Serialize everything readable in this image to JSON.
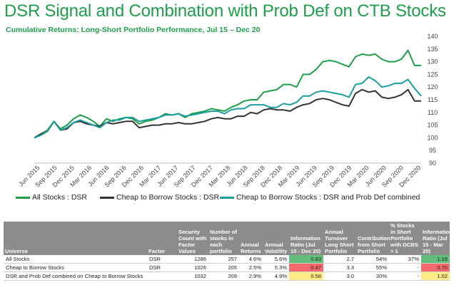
{
  "title": "DSR Signal and Combination with Prob Def on CTB Stocks",
  "subtitle": "Cumulative Returns: Long-Short Portfolio Performance, Jul 15 – Dec 20",
  "colors": {
    "title": "#1e9e4a",
    "all_stocks": "#1e9e4a",
    "ctb_dsr": "#333333",
    "ctb_combined": "#1a9e9e",
    "header_bg": "#8c8c8c",
    "good": "#63be7b",
    "bad": "#f8696b",
    "mid": "#ffeb84"
  },
  "chart_data": {
    "type": "line",
    "title": "",
    "xlabel": "",
    "ylabel": "",
    "ylim": [
      90,
      140
    ],
    "yticks": [
      90,
      95,
      100,
      105,
      110,
      115,
      120,
      125,
      130,
      135,
      140
    ],
    "grid": false,
    "legend_position": "bottom",
    "x_tick_labels": [
      "Jun 2015",
      "Sep 2015",
      "Dec 2015",
      "Mar 2016",
      "Jun 2016",
      "Sep 2016",
      "Dec 2016",
      "Mar 2017",
      "Jun 2017",
      "Sep 2017",
      "Dec 2017",
      "Mar 2018",
      "Jun 2018",
      "Sep 2018",
      "Dec 2018",
      "Mar 2019",
      "Jun 2019",
      "Sep 2019",
      "Dec 2019",
      "Mar 2020",
      "Jun 2020",
      "Sep 2020",
      "Dec 2020"
    ],
    "series": [
      {
        "name": "All Stocks : DSR",
        "values": [
          100,
          101.5,
          103,
          106.5,
          103.5,
          105,
          107.5,
          109,
          108,
          106.5,
          104.5,
          107.5,
          106.5,
          107.5,
          108,
          107.5,
          105.5,
          106.5,
          107,
          108,
          109.5,
          109,
          109.5,
          108,
          109.5,
          110,
          110.5,
          111.5,
          111,
          110.5,
          112,
          113,
          114.5,
          115,
          115,
          118,
          118.5,
          119,
          121,
          121,
          120,
          125,
          125,
          127,
          130,
          130.5,
          130,
          129,
          128,
          132,
          133,
          132.5,
          133,
          131,
          130,
          130,
          131,
          134.5,
          128.5,
          128.5
        ]
      },
      {
        "name": "Cheap to Borrow Stocks : DSR",
        "values": [
          100,
          101.5,
          102.5,
          106.5,
          103,
          103.5,
          106,
          106.5,
          105.5,
          105,
          104.5,
          106,
          105.5,
          106,
          106.5,
          106.5,
          104,
          104.5,
          105,
          105,
          105.5,
          105.5,
          106,
          105.5,
          105.5,
          106,
          106.5,
          107.5,
          108,
          107.5,
          107.5,
          108.5,
          108.5,
          110,
          109.5,
          111,
          111.5,
          111,
          111,
          110.5,
          112,
          113,
          113.5,
          115,
          115.5,
          115,
          114,
          113,
          112.5,
          117.5,
          119,
          118,
          118.5,
          116,
          115.5,
          116,
          117,
          119,
          114.5,
          114.5
        ]
      },
      {
        "name": "Cheap to Borrow Stocks : DSR and Prob Def combined",
        "values": [
          100,
          101,
          102.5,
          106.5,
          103,
          104,
          106,
          107,
          106,
          105,
          104,
          106,
          107,
          107,
          108,
          108,
          106.5,
          107,
          107.5,
          108,
          109,
          109,
          109.5,
          108.5,
          109,
          109.5,
          110,
          110.5,
          110.5,
          109.5,
          111,
          111.5,
          111.5,
          113,
          113,
          113,
          112,
          112,
          113.5,
          113,
          114,
          116.5,
          116.5,
          118,
          118.5,
          118,
          117.5,
          117,
          116,
          121,
          121.5,
          124,
          122.5,
          120,
          120.5,
          121.5,
          121.5,
          123,
          119.5,
          116.5
        ]
      }
    ]
  },
  "table": {
    "headers": [
      "Universe",
      "Factor",
      "Security Count with Factor Values",
      "Number of stocks in each portfolio",
      "Annual Returns",
      "Annual Volatility",
      "Information Ratio (Jul 15 - Dec 20)",
      "Annual Turnover Long Short Portfolio",
      "Contribution from Short Portfolio",
      "% Stocks in Short Portfolio with DCBS > 1",
      "Information Ratio (Jul 15 - Mar 20)"
    ],
    "rows": [
      {
        "universe": "All Stocks",
        "factor": "DSR",
        "count": "1286",
        "n": "257",
        "ret": "4.6%",
        "vol": "5.6%",
        "ir": "0.83",
        "turnover": "2.7",
        "contrib": "54%",
        "pct": "37%",
        "ir2": "1.16",
        "ir_color": "good",
        "ir2_color": "good"
      },
      {
        "universe": "Cheap to Borrow Stocks",
        "factor": "DSR",
        "count": "1026",
        "n": "205",
        "ret": "2.5%",
        "vol": "5.3%",
        "ir": "0.47",
        "turnover": "3.3",
        "contrib": "55%",
        "pct": "-",
        "ir2": "0.70",
        "ir_color": "bad",
        "ir2_color": "bad"
      },
      {
        "universe": "DSR and Prob Def combined on Cheap to Borrow Stocks",
        "factor": "",
        "count": "1032",
        "n": "209",
        "ret": "2.9%",
        "vol": "4.9%",
        "ir": "0.58",
        "turnover": "3.0",
        "contrib": "30%",
        "pct": "-",
        "ir2": "1.02",
        "ir_color": "mid",
        "ir2_color": "mid"
      }
    ]
  }
}
